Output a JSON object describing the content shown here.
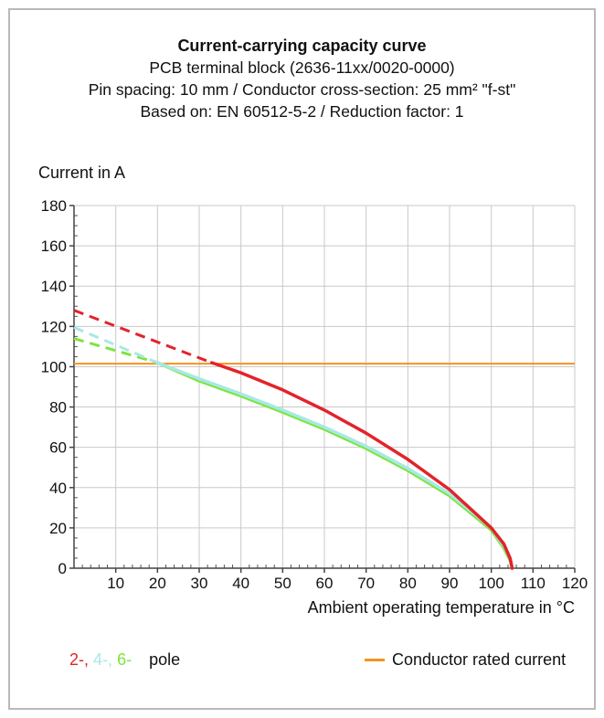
{
  "title": "Current-carrying capacity curve",
  "subtitle1": "PCB terminal block (2636-11xx/0020-0000)",
  "subtitle2": "Pin spacing: 10 mm / Conductor cross-section: 25 mm² \"f-st\"",
  "subtitle3": "Based on: EN 60512-5-2 / Reduction factor: 1",
  "legend": {
    "pole_prefixes": [
      "2-,",
      "4-,",
      "6-"
    ],
    "pole_label": "pole",
    "rated_label": "Conductor rated current"
  },
  "colors": {
    "red": "#e3232a",
    "cyan": "#a7e9e4",
    "green": "#7ee43c",
    "orange": "#f7931d",
    "grid": "#c9c9cb"
  },
  "chart_data": {
    "type": "line",
    "xlabel": "Ambient operating temperature in °C",
    "ylabel": "Current in A",
    "xlim": [
      0,
      120
    ],
    "ylim": [
      0,
      180
    ],
    "xticks": [
      10,
      20,
      30,
      40,
      50,
      60,
      70,
      80,
      90,
      100,
      110,
      120
    ],
    "yticks": [
      0,
      20,
      40,
      60,
      80,
      100,
      120,
      140,
      160,
      180
    ],
    "rated_current": 101.5,
    "series": [
      {
        "name": "2-",
        "color": "red",
        "dashed": [
          [
            0,
            128
          ],
          [
            33,
            102
          ]
        ],
        "solid": [
          [
            33,
            102
          ],
          [
            40,
            97
          ],
          [
            50,
            88.5
          ],
          [
            60,
            78.5
          ],
          [
            70,
            67
          ],
          [
            80,
            54
          ],
          [
            90,
            39
          ],
          [
            100,
            20
          ],
          [
            103,
            12
          ],
          [
            104.5,
            5
          ],
          [
            105,
            0
          ]
        ]
      },
      {
        "name": "4-",
        "color": "cyan",
        "dashed": [
          [
            0,
            119.5
          ],
          [
            20,
            102
          ]
        ],
        "solid": [
          [
            20,
            102
          ],
          [
            30,
            94
          ],
          [
            40,
            86.5
          ],
          [
            50,
            78.5
          ],
          [
            60,
            70
          ],
          [
            70,
            60.5
          ],
          [
            80,
            49.5
          ],
          [
            90,
            37
          ],
          [
            100,
            20
          ],
          [
            103,
            11
          ],
          [
            104.5,
            5
          ],
          [
            105,
            0
          ]
        ]
      },
      {
        "name": "6-",
        "color": "green",
        "dashed": [
          [
            0,
            114
          ],
          [
            20,
            102
          ]
        ],
        "solid": [
          [
            20,
            102
          ],
          [
            30,
            93
          ],
          [
            40,
            85.5
          ],
          [
            50,
            77.5
          ],
          [
            60,
            69
          ],
          [
            70,
            59.5
          ],
          [
            80,
            48.5
          ],
          [
            90,
            36
          ],
          [
            100,
            19
          ],
          [
            103,
            10
          ],
          [
            104.5,
            4
          ],
          [
            105,
            0
          ]
        ]
      }
    ]
  }
}
